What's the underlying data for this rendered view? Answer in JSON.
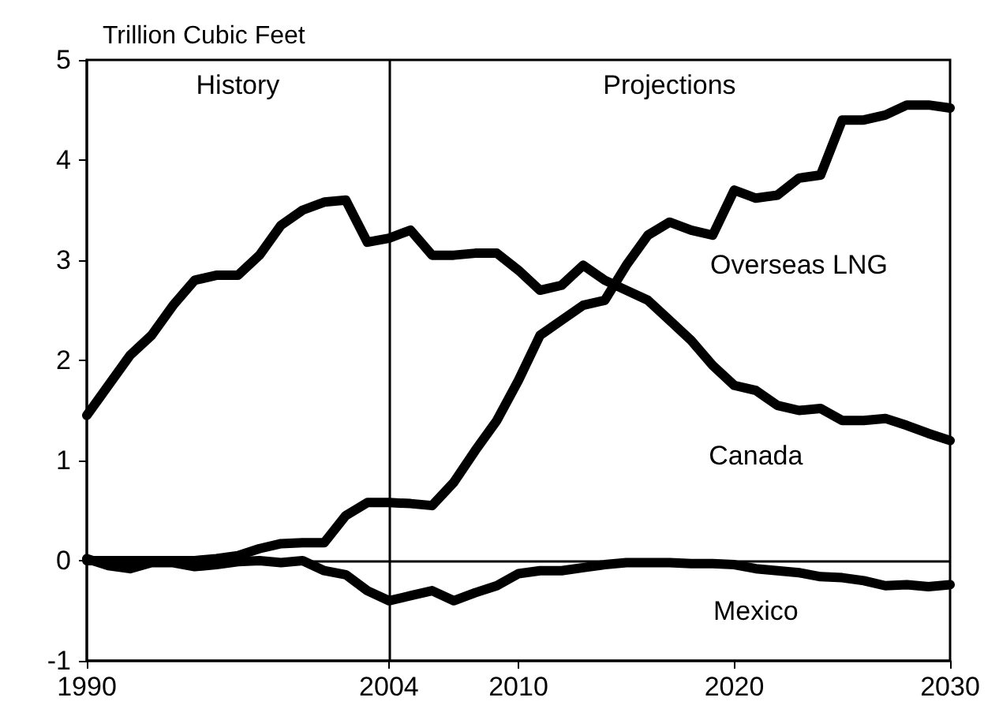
{
  "chart_data": {
    "type": "line",
    "ylabel": "Trillion Cubic Feet",
    "x": [
      1990,
      1991,
      1992,
      1993,
      1994,
      1995,
      1996,
      1997,
      1998,
      1999,
      2000,
      2001,
      2002,
      2003,
      2004,
      2005,
      2006,
      2007,
      2008,
      2009,
      2010,
      2011,
      2012,
      2013,
      2014,
      2015,
      2016,
      2017,
      2018,
      2019,
      2020,
      2021,
      2022,
      2023,
      2024,
      2025,
      2026,
      2027,
      2028,
      2029,
      2030
    ],
    "series": [
      {
        "name": "Canada",
        "color": "#000000",
        "values": [
          1.45,
          1.75,
          2.05,
          2.25,
          2.55,
          2.8,
          2.85,
          2.85,
          3.05,
          3.35,
          3.5,
          3.58,
          3.6,
          3.18,
          3.22,
          3.3,
          3.05,
          3.05,
          3.07,
          3.07,
          2.9,
          2.7,
          2.75,
          2.95,
          2.8,
          2.7,
          2.6,
          2.4,
          2.2,
          1.95,
          1.75,
          1.7,
          1.55,
          1.5,
          1.52,
          1.4,
          1.4,
          1.42,
          1.35,
          1.27,
          1.2
        ]
      },
      {
        "name": "Overseas LNG",
        "color": "#000000",
        "values": [
          0,
          0,
          0,
          0,
          0,
          0,
          0.02,
          0.05,
          0.12,
          0.17,
          0.18,
          0.18,
          0.45,
          0.58,
          0.58,
          0.57,
          0.55,
          0.78,
          1.1,
          1.4,
          1.8,
          2.25,
          2.4,
          2.55,
          2.6,
          2.95,
          3.25,
          3.38,
          3.3,
          3.25,
          3.7,
          3.62,
          3.65,
          3.82,
          3.85,
          4.4,
          4.4,
          4.45,
          4.55,
          4.55,
          4.52
        ]
      },
      {
        "name": "Mexico",
        "color": "#000000",
        "values": [
          0.02,
          -0.05,
          -0.08,
          -0.02,
          -0.02,
          -0.06,
          -0.04,
          -0.01,
          0,
          -0.02,
          0,
          -0.1,
          -0.14,
          -0.3,
          -0.4,
          -0.35,
          -0.3,
          -0.4,
          -0.32,
          -0.25,
          -0.13,
          -0.1,
          -0.1,
          -0.07,
          -0.04,
          -0.02,
          -0.02,
          -0.02,
          -0.03,
          -0.03,
          -0.04,
          -0.08,
          -0.1,
          -0.12,
          -0.16,
          -0.17,
          -0.2,
          -0.25,
          -0.24,
          -0.26,
          -0.24
        ]
      }
    ],
    "annotations": [
      "History",
      "Projections"
    ],
    "ref_lines": [
      {
        "axis": "x",
        "value": 2004,
        "color": "#000000"
      },
      {
        "axis": "y",
        "value": 0,
        "color": "#000000"
      }
    ],
    "xlim": [
      1990,
      2030
    ],
    "xticks": [
      1990,
      2004,
      2010,
      2020,
      2030
    ],
    "ylim": [
      -1,
      5
    ],
    "yticks": [
      -1,
      0,
      1,
      2,
      3,
      4,
      5
    ],
    "grid": false,
    "legend": false,
    "marker": "none",
    "line_style": "solid"
  }
}
